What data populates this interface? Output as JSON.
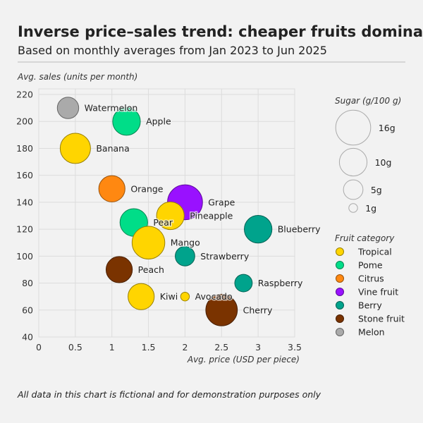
{
  "chart_data": {
    "type": "scatter",
    "title": "Inverse price–sales trend: cheaper fruits dominate",
    "subtitle": "Based on monthly averages from Jan 2023 to Jun 2025",
    "xlabel": "Avg. price (USD per piece)",
    "ylabel": "Avg. sales (units per month)",
    "xlim": [
      0,
      3.5
    ],
    "ylim": [
      40,
      220
    ],
    "xticks": [
      "0",
      "0.5",
      "1",
      "1.5",
      "2",
      "2.5",
      "3",
      "3.5"
    ],
    "xtick_values": [
      0,
      0.5,
      1,
      1.5,
      2,
      2.5,
      3,
      3.5
    ],
    "yticks": [
      "40",
      "60",
      "80",
      "100",
      "120",
      "140",
      "160",
      "180",
      "200",
      "220"
    ],
    "ytick_values": [
      40,
      60,
      80,
      100,
      120,
      140,
      160,
      180,
      200,
      220
    ],
    "grid": true,
    "size_legend": {
      "title": "Sugar (g/100 g)",
      "items": [
        {
          "label": "16g",
          "value": 16
        },
        {
          "label": "10g",
          "value": 10
        },
        {
          "label": "5g",
          "value": 5
        },
        {
          "label": "1g",
          "value": 1
        }
      ]
    },
    "category_legend": {
      "title": "Fruit category",
      "items": [
        {
          "label": "Tropical",
          "color": "#FFD500"
        },
        {
          "label": "Pome",
          "color": "#00DD88"
        },
        {
          "label": "Citrus",
          "color": "#FF8811"
        },
        {
          "label": "Vine fruit",
          "color": "#9911FF"
        },
        {
          "label": "Berry",
          "color": "#00A38C"
        },
        {
          "label": "Stone fruit",
          "color": "#7A3300"
        },
        {
          "label": "Melon",
          "color": "#AAAAAA"
        }
      ]
    },
    "points": [
      {
        "name": "Watermelon",
        "x": 0.4,
        "y": 210,
        "sugar": 6,
        "category": "Melon"
      },
      {
        "name": "Apple",
        "x": 1.2,
        "y": 200,
        "sugar": 10,
        "category": "Pome"
      },
      {
        "name": "Banana",
        "x": 0.5,
        "y": 180,
        "sugar": 12,
        "category": "Tropical"
      },
      {
        "name": "Orange",
        "x": 1.0,
        "y": 150,
        "sugar": 9,
        "category": "Citrus"
      },
      {
        "name": "Grape",
        "x": 2.0,
        "y": 140,
        "sugar": 16,
        "category": "Vine fruit"
      },
      {
        "name": "Pineapple",
        "x": 1.8,
        "y": 130,
        "sugar": 10,
        "category": "Tropical"
      },
      {
        "name": "Pear",
        "x": 1.3,
        "y": 125,
        "sugar": 10,
        "category": "Pome"
      },
      {
        "name": "Blueberry",
        "x": 3.0,
        "y": 120,
        "sugar": 10,
        "category": "Berry"
      },
      {
        "name": "Mango",
        "x": 1.5,
        "y": 110,
        "sugar": 14,
        "category": "Tropical"
      },
      {
        "name": "Strawberry",
        "x": 2.0,
        "y": 100,
        "sugar": 5,
        "category": "Berry"
      },
      {
        "name": "Peach",
        "x": 1.1,
        "y": 90,
        "sugar": 9,
        "category": "Stone fruit"
      },
      {
        "name": "Raspberry",
        "x": 2.8,
        "y": 80,
        "sugar": 4,
        "category": "Berry"
      },
      {
        "name": "Kiwi",
        "x": 1.4,
        "y": 70,
        "sugar": 9,
        "category": "Tropical"
      },
      {
        "name": "Avocado",
        "x": 2.0,
        "y": 70,
        "sugar": 1,
        "category": "Tropical"
      },
      {
        "name": "Cherry",
        "x": 2.5,
        "y": 60,
        "sugar": 13,
        "category": "Stone fruit"
      }
    ]
  },
  "footnote": "All data in this chart is fictional and for demonstration purposes only"
}
